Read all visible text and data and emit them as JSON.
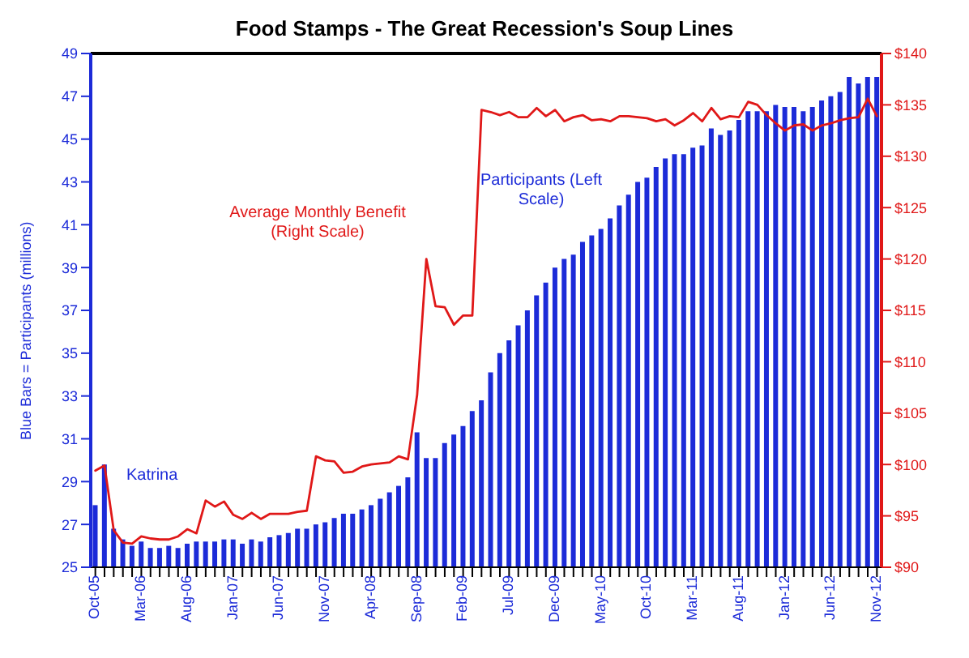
{
  "chart_data": {
    "type": "bar",
    "title": "Food Stamps - The Great Recession's Soup Lines",
    "ylabel": "Blue Bars = Participants (millions)",
    "annotations": [
      "Katrina"
    ],
    "categories": [
      "Oct-05",
      null,
      null,
      null,
      null,
      "Mar-06",
      null,
      null,
      null,
      null,
      "Aug-06",
      null,
      null,
      null,
      null,
      "Jan-07",
      null,
      null,
      null,
      null,
      "Jun-07",
      null,
      null,
      null,
      null,
      "Nov-07",
      null,
      null,
      null,
      null,
      "Apr-08",
      null,
      null,
      null,
      null,
      "Sep-08",
      null,
      null,
      null,
      null,
      "Feb-09",
      null,
      null,
      null,
      null,
      "Jul-09",
      null,
      null,
      null,
      null,
      "Dec-09",
      null,
      null,
      null,
      null,
      "May-10",
      null,
      null,
      null,
      null,
      "Oct-10",
      null,
      null,
      null,
      null,
      "Mar-11",
      null,
      null,
      null,
      null,
      "Aug-11",
      null,
      null,
      null,
      null,
      "Jan-12",
      null,
      null,
      null,
      null,
      "Jun-12",
      null,
      null,
      null,
      null,
      "Nov-12"
    ],
    "series": [
      {
        "name": "Participants (Left Scale)",
        "color": "#1c2bd8",
        "values": [
          27.9,
          29.8,
          26.8,
          26.3,
          26.0,
          26.2,
          25.9,
          25.9,
          26.0,
          25.9,
          26.1,
          26.2,
          26.2,
          26.2,
          26.3,
          26.3,
          26.1,
          26.3,
          26.2,
          26.4,
          26.5,
          26.6,
          26.8,
          26.8,
          27.0,
          27.1,
          27.3,
          27.5,
          27.5,
          27.7,
          27.9,
          28.2,
          28.5,
          28.8,
          29.2,
          31.3,
          30.1,
          30.1,
          30.8,
          31.2,
          31.6,
          32.3,
          32.8,
          34.1,
          35.0,
          35.6,
          36.3,
          37.0,
          37.7,
          38.3,
          39.0,
          39.4,
          39.6,
          40.2,
          40.5,
          40.8,
          41.3,
          41.9,
          42.4,
          43.0,
          43.2,
          43.7,
          44.1,
          44.3,
          44.3,
          44.6,
          44.7,
          45.5,
          45.2,
          45.4,
          45.9,
          46.3,
          46.3,
          46.3,
          46.6,
          46.5,
          46.5,
          46.3,
          46.5,
          46.8,
          47.0,
          47.2,
          47.9,
          47.6,
          47.9,
          47.9
        ]
      },
      {
        "name": "Average Monthly Benefit (Right Scale)",
        "type": "line",
        "axis": "y2",
        "color": "#e01818",
        "values": [
          99.4,
          99.9,
          93.6,
          92.4,
          92.3,
          93.0,
          92.8,
          92.7,
          92.7,
          93.0,
          93.7,
          93.3,
          96.5,
          95.9,
          96.4,
          95.1,
          94.7,
          95.3,
          94.7,
          95.2,
          95.2,
          95.2,
          95.4,
          95.5,
          100.8,
          100.4,
          100.3,
          99.2,
          99.3,
          99.8,
          100.0,
          100.1,
          100.2,
          100.8,
          100.5,
          106.8,
          120.0,
          115.4,
          115.3,
          113.6,
          114.5,
          114.5,
          134.5,
          134.3,
          134.0,
          134.3,
          133.8,
          133.8,
          134.7,
          133.9,
          134.5,
          133.4,
          133.8,
          134.0,
          133.5,
          133.6,
          133.4,
          133.9,
          133.9,
          133.8,
          133.7,
          133.4,
          133.6,
          133.0,
          133.5,
          134.2,
          133.4,
          134.7,
          133.6,
          133.9,
          133.8,
          135.3,
          135.0,
          134.0,
          133.2,
          132.5,
          133.0,
          133.1,
          132.5,
          133.0,
          133.2,
          133.5,
          133.7,
          133.8,
          135.6,
          133.9
        ]
      }
    ],
    "ylim": [
      25,
      49
    ],
    "yticks": [
      25,
      27,
      29,
      31,
      33,
      35,
      37,
      39,
      41,
      43,
      45,
      47,
      49
    ],
    "y2lim": [
      90,
      140
    ],
    "y2ticks": [
      {
        "value": 90,
        "label": "$90"
      },
      {
        "value": 95,
        "label": "$95"
      },
      {
        "value": 100,
        "label": "$100"
      },
      {
        "value": 105,
        "label": "$105"
      },
      {
        "value": 110,
        "label": "$110"
      },
      {
        "value": 115,
        "label": "$115"
      },
      {
        "value": 120,
        "label": "$120"
      },
      {
        "value": 125,
        "label": "$125"
      },
      {
        "value": 130,
        "label": "$130"
      },
      {
        "value": 135,
        "label": "$135"
      },
      {
        "value": 140,
        "label": "$140"
      }
    ],
    "grid": false,
    "legend": false,
    "marker": "none",
    "line_style": "solid"
  }
}
